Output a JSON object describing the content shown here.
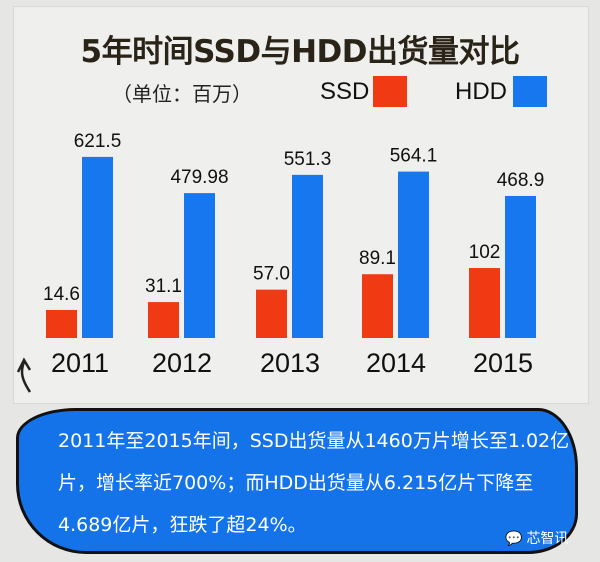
{
  "chart_data": {
    "type": "bar",
    "title": "5年时间SSD与HDD出货量对比",
    "unit_label": "（单位：百万）",
    "categories": [
      "2011",
      "2012",
      "2013",
      "2014",
      "2015"
    ],
    "series": [
      {
        "name": "SSD",
        "color": "#f03a14",
        "values": [
          14.6,
          31.1,
          57.0,
          89.1,
          102
        ],
        "labels": [
          "14.6",
          "31.1",
          "57.0",
          "89.1",
          "102"
        ]
      },
      {
        "name": "HDD",
        "color": "#1677ee",
        "values": [
          621.5,
          479.98,
          551.3,
          564.1,
          468.9
        ],
        "labels": [
          "621.5",
          "479.98",
          "551.3",
          "564.1",
          "468.9"
        ]
      }
    ],
    "legend_position": "top-right",
    "grid": false
  },
  "annotation": {
    "text": "2011年至2015年间，SSD出货量从1460万片增长至1.02亿片，增长率近700%；而HDD出货量从6.215亿片下降至4.689亿片，狂跌了超24%。",
    "watermark": "芯智讯"
  }
}
